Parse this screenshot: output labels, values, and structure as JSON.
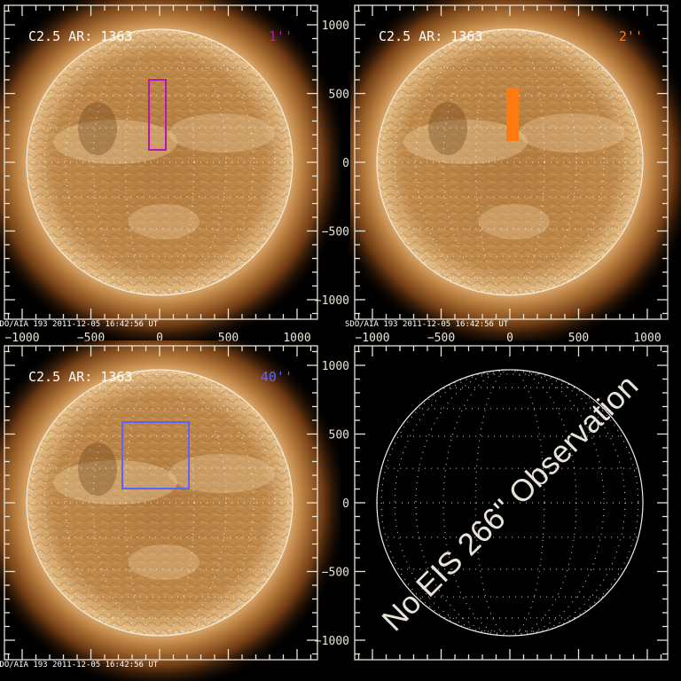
{
  "colors": {
    "axis": "#e8e4d8",
    "disk_center": "#c89660",
    "disk_edge": "#a06a30",
    "corona": "#8a5020"
  },
  "panels": [
    {
      "id": "top-left",
      "has_image": true,
      "title": "C2.5 AR: 1363",
      "slit_label": "1''",
      "slit_color": "#c010c0",
      "box_style": "outline",
      "footer": "SDO/AIA 193  2011-12-05 16:42:56 UT",
      "show_x_labels": true,
      "show_y_labels": false
    },
    {
      "id": "top-right",
      "has_image": true,
      "title": "C2.5 AR: 1363",
      "slit_label": "2''",
      "slit_color": "#ff7a10",
      "box_style": "filled",
      "footer": "SDO/AIA 193  2011-12-05 16:42:56 UT",
      "show_x_labels": true,
      "show_y_labels": true
    },
    {
      "id": "bottom-left",
      "has_image": true,
      "title": "C2.5 AR: 1363",
      "slit_label": "40''",
      "slit_color": "#5a64ff",
      "box_style": "outline",
      "footer": "SDO/AIA 193  2011-12-05 16:42:56 UT",
      "show_x_labels": false,
      "show_y_labels": false
    },
    {
      "id": "bottom-right",
      "has_image": false,
      "message": "No EIS 266'' Observation",
      "show_x_labels": false,
      "show_y_labels": true
    }
  ],
  "axes": {
    "major_ticks": [
      -1000,
      -500,
      0,
      500,
      1000
    ],
    "tick_labels": [
      "−1000",
      "−500",
      "0",
      "500",
      "1000"
    ],
    "minor_step": 100,
    "unit": "arcsec"
  }
}
